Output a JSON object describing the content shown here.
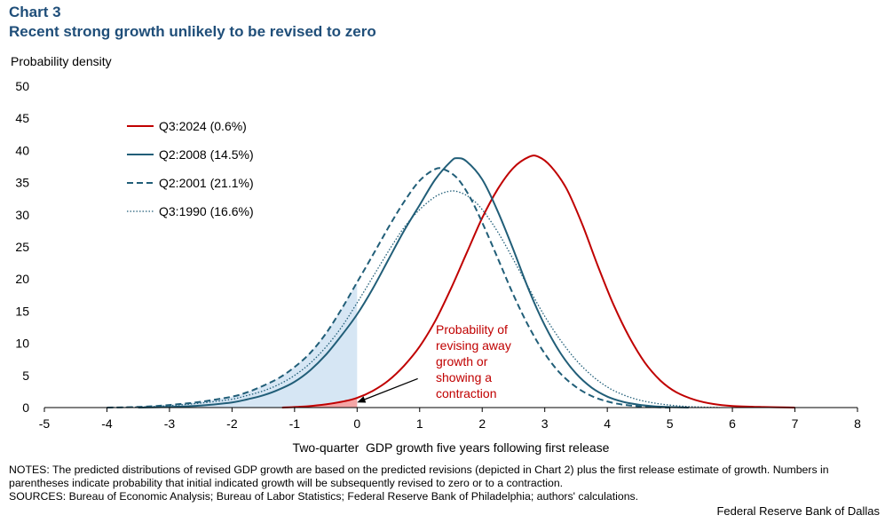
{
  "chart_data": {
    "type": "line",
    "label": "Chart 3",
    "title": "Recent strong growth unlikely to be revised to zero",
    "ylabel": "Probability density",
    "xlabel": "Two-quarter  GDP growth five years following first release",
    "xlim": [
      -5,
      8
    ],
    "ylim": [
      0,
      50
    ],
    "xticks": [
      -5,
      -4,
      -3,
      -2,
      -1,
      0,
      1,
      2,
      3,
      4,
      5,
      6,
      7,
      8
    ],
    "yticks": [
      0,
      5,
      10,
      15,
      20,
      25,
      30,
      35,
      40,
      45,
      50
    ],
    "legend_position": "top-left",
    "colors": {
      "red": "#C00000",
      "blue": "#215E78",
      "shade_red": "#F4A6A6",
      "shade_blue": "#D6E6F4"
    },
    "series": [
      {
        "name": "Q3:2024 (0.6%)",
        "style": "solid",
        "color": "#C00000",
        "points": [
          [
            -1.2,
            0
          ],
          [
            -0.8,
            0.2
          ],
          [
            -0.5,
            0.5
          ],
          [
            -0.2,
            1.0
          ],
          [
            0,
            1.5
          ],
          [
            0.25,
            2.6
          ],
          [
            0.5,
            4.2
          ],
          [
            0.75,
            6.5
          ],
          [
            1,
            9.5
          ],
          [
            1.25,
            13.5
          ],
          [
            1.5,
            18.5
          ],
          [
            1.75,
            24
          ],
          [
            2,
            29.5
          ],
          [
            2.25,
            34
          ],
          [
            2.5,
            37.3
          ],
          [
            2.75,
            39
          ],
          [
            2.9,
            39
          ],
          [
            3.1,
            37.5
          ],
          [
            3.35,
            34
          ],
          [
            3.6,
            28.5
          ],
          [
            3.85,
            22
          ],
          [
            4.1,
            16
          ],
          [
            4.35,
            11
          ],
          [
            4.6,
            7
          ],
          [
            4.85,
            4.2
          ],
          [
            5.1,
            2.4
          ],
          [
            5.4,
            1.2
          ],
          [
            5.7,
            0.55
          ],
          [
            6,
            0.25
          ],
          [
            6.5,
            0.08
          ],
          [
            7,
            0
          ]
        ]
      },
      {
        "name": "Q2:2008 (14.5%)",
        "style": "solid",
        "color": "#215E78",
        "points": [
          [
            -3.5,
            0
          ],
          [
            -3,
            0.1
          ],
          [
            -2.5,
            0.3
          ],
          [
            -2,
            0.8
          ],
          [
            -1.75,
            1.3
          ],
          [
            -1.5,
            1.9
          ],
          [
            -1.25,
            2.8
          ],
          [
            -1,
            4.0
          ],
          [
            -0.75,
            5.8
          ],
          [
            -0.5,
            8.2
          ],
          [
            -0.25,
            11.2
          ],
          [
            0,
            14.5
          ],
          [
            0.25,
            18.5
          ],
          [
            0.5,
            23
          ],
          [
            0.75,
            27.5
          ],
          [
            1,
            31.5
          ],
          [
            1.25,
            35.5
          ],
          [
            1.5,
            38.3
          ],
          [
            1.6,
            38.8
          ],
          [
            1.75,
            38.3
          ],
          [
            2,
            35.5
          ],
          [
            2.25,
            30.5
          ],
          [
            2.5,
            24.5
          ],
          [
            2.75,
            18.2
          ],
          [
            3,
            12.8
          ],
          [
            3.25,
            8.5
          ],
          [
            3.5,
            5.3
          ],
          [
            3.75,
            3.1
          ],
          [
            4,
            1.7
          ],
          [
            4.25,
            0.9
          ],
          [
            4.5,
            0.45
          ],
          [
            4.75,
            0.2
          ],
          [
            5,
            0.08
          ],
          [
            5.3,
            0
          ]
        ]
      },
      {
        "name": "Q2:2001 (21.1%)",
        "style": "dashed",
        "color": "#215E78",
        "points": [
          [
            -4,
            0
          ],
          [
            -3.5,
            0.1
          ],
          [
            -3,
            0.4
          ],
          [
            -2.5,
            0.9
          ],
          [
            -2,
            1.7
          ],
          [
            -1.75,
            2.4
          ],
          [
            -1.5,
            3.4
          ],
          [
            -1.25,
            4.6
          ],
          [
            -1,
            6.3
          ],
          [
            -0.75,
            8.5
          ],
          [
            -0.5,
            11.5
          ],
          [
            -0.25,
            15.3
          ],
          [
            0,
            19.5
          ],
          [
            0.25,
            23.7
          ],
          [
            0.5,
            28
          ],
          [
            0.75,
            32
          ],
          [
            1,
            35.3
          ],
          [
            1.25,
            37.1
          ],
          [
            1.4,
            37
          ],
          [
            1.6,
            35.7
          ],
          [
            1.8,
            32.8
          ],
          [
            2,
            28.8
          ],
          [
            2.25,
            23.2
          ],
          [
            2.5,
            17.5
          ],
          [
            2.75,
            12.5
          ],
          [
            3,
            8.4
          ],
          [
            3.25,
            5.3
          ],
          [
            3.5,
            3.2
          ],
          [
            3.75,
            1.8
          ],
          [
            4,
            0.95
          ],
          [
            4.25,
            0.45
          ],
          [
            4.5,
            0.2
          ],
          [
            4.75,
            0.07
          ],
          [
            5,
            0
          ]
        ]
      },
      {
        "name": "Q3:1990 (16.6%)",
        "style": "dotted",
        "color": "#215E78",
        "points": [
          [
            -4,
            0
          ],
          [
            -3.5,
            0.08
          ],
          [
            -3,
            0.3
          ],
          [
            -2.5,
            0.7
          ],
          [
            -2,
            1.3
          ],
          [
            -1.75,
            1.9
          ],
          [
            -1.5,
            2.6
          ],
          [
            -1.25,
            3.6
          ],
          [
            -1,
            5.0
          ],
          [
            -0.75,
            6.9
          ],
          [
            -0.5,
            9.4
          ],
          [
            -0.25,
            12.5
          ],
          [
            0,
            16.3
          ],
          [
            0.25,
            20.3
          ],
          [
            0.5,
            24.3
          ],
          [
            0.75,
            28
          ],
          [
            1,
            30.8
          ],
          [
            1.25,
            32.8
          ],
          [
            1.45,
            33.6
          ],
          [
            1.6,
            33.6
          ],
          [
            1.8,
            32.7
          ],
          [
            2,
            30.8
          ],
          [
            2.25,
            27.3
          ],
          [
            2.5,
            23
          ],
          [
            2.75,
            18.5
          ],
          [
            3,
            14.2
          ],
          [
            3.25,
            10.5
          ],
          [
            3.5,
            7.4
          ],
          [
            3.75,
            5
          ],
          [
            4,
            3.2
          ],
          [
            4.25,
            2
          ],
          [
            4.5,
            1.2
          ],
          [
            4.75,
            0.7
          ],
          [
            5,
            0.38
          ],
          [
            5.25,
            0.18
          ],
          [
            5.5,
            0.08
          ],
          [
            5.8,
            0
          ]
        ]
      }
    ],
    "annotation": {
      "lines": [
        "Probability of",
        "revising away",
        "growth or",
        "showing a",
        "contraction"
      ],
      "color": "#C00000",
      "arrow_to": [
        0,
        0.8
      ],
      "arrow_from": [
        0.97,
        4.5
      ]
    }
  },
  "notes": {
    "line1": "NOTES: The predicted distributions of revised GDP growth are based on the predicted revisions (depicted in Chart 2) plus the first release estimate of growth. Numbers in parentheses indicate probability that initial indicated growth will be subsequently revised to zero or to a contraction.",
    "line2": "SOURCES: Bureau of Economic Analysis; Bureau of Labor Statistics; Federal Reserve Bank of Philadelphia; authors' calculations."
  },
  "credit": "Federal Reserve Bank of Dallas"
}
